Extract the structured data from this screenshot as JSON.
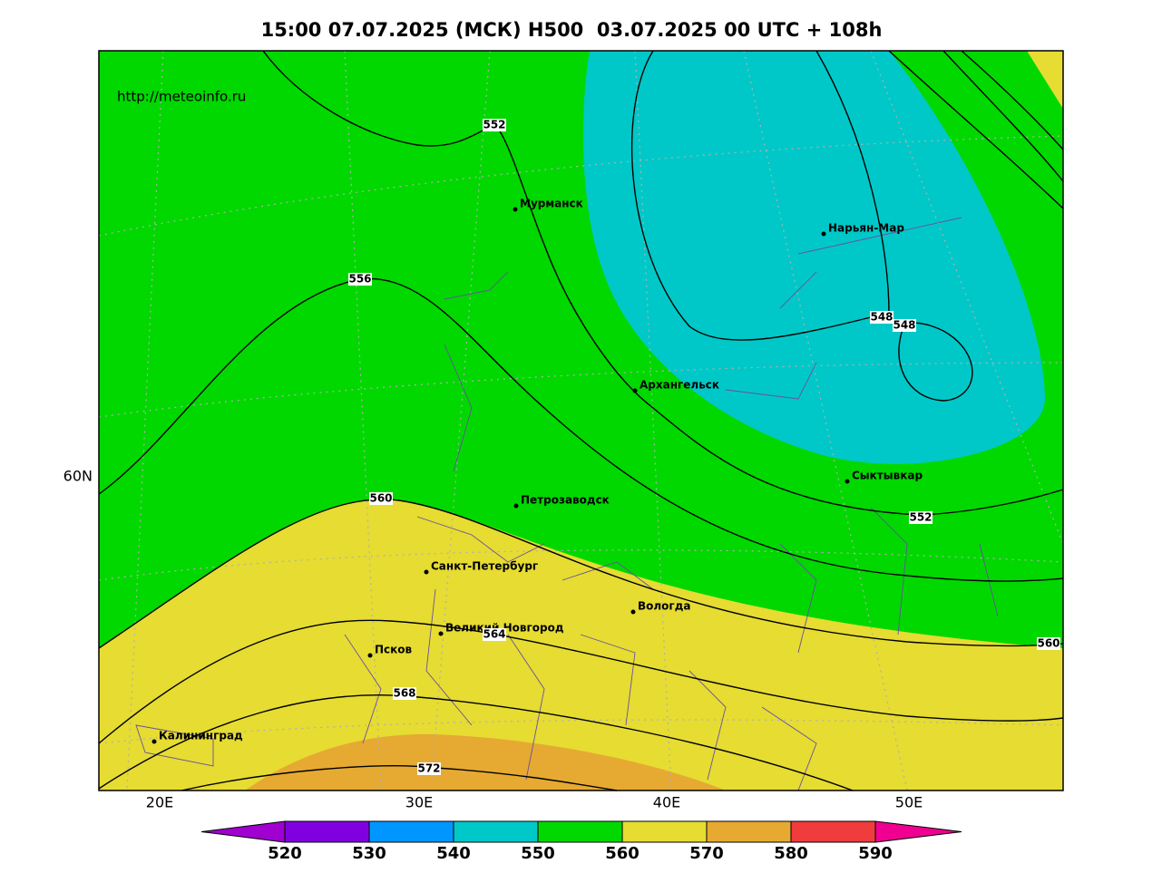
{
  "title": "15:00 07.07.2025 (МСК) H500  03.07.2025 00 UTC + 108h",
  "source": "http://meteoinfo.ru",
  "cities": [
    "Мурманск",
    "Нарьян-Мар",
    "Архангельск",
    "Сыктывкар",
    "Петрозаводск",
    "Санкт-Петербург",
    "Вологда",
    "Великий Новгород",
    "Псков",
    "Калининград"
  ],
  "contour_labels": [
    "552",
    "556",
    "548",
    "548",
    "560",
    "552",
    "560",
    "564",
    "568",
    "572"
  ],
  "lon_labels": [
    "20E",
    "30E",
    "40E",
    "50E"
  ],
  "lat_labels": [
    "60N"
  ],
  "colorbar": {
    "levels": [
      520,
      530,
      540,
      550,
      560,
      570,
      580,
      590
    ],
    "colors": [
      "#a000d0",
      "#8000e0",
      "#0096ff",
      "#00c8c8",
      "#00d800",
      "#e6dc32",
      "#e6aa32",
      "#f03c3c",
      "#f00090"
    ]
  }
}
